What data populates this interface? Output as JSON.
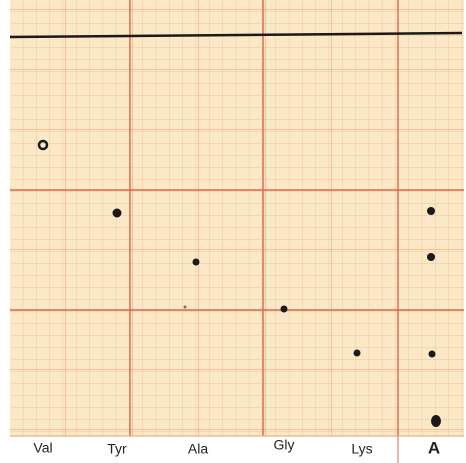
{
  "lanes": [
    {
      "label": "Val"
    },
    {
      "label": "Tyr"
    },
    {
      "label": "Ala"
    },
    {
      "label": "Gly"
    },
    {
      "label": "Lys"
    },
    {
      "label": "A"
    }
  ]
}
